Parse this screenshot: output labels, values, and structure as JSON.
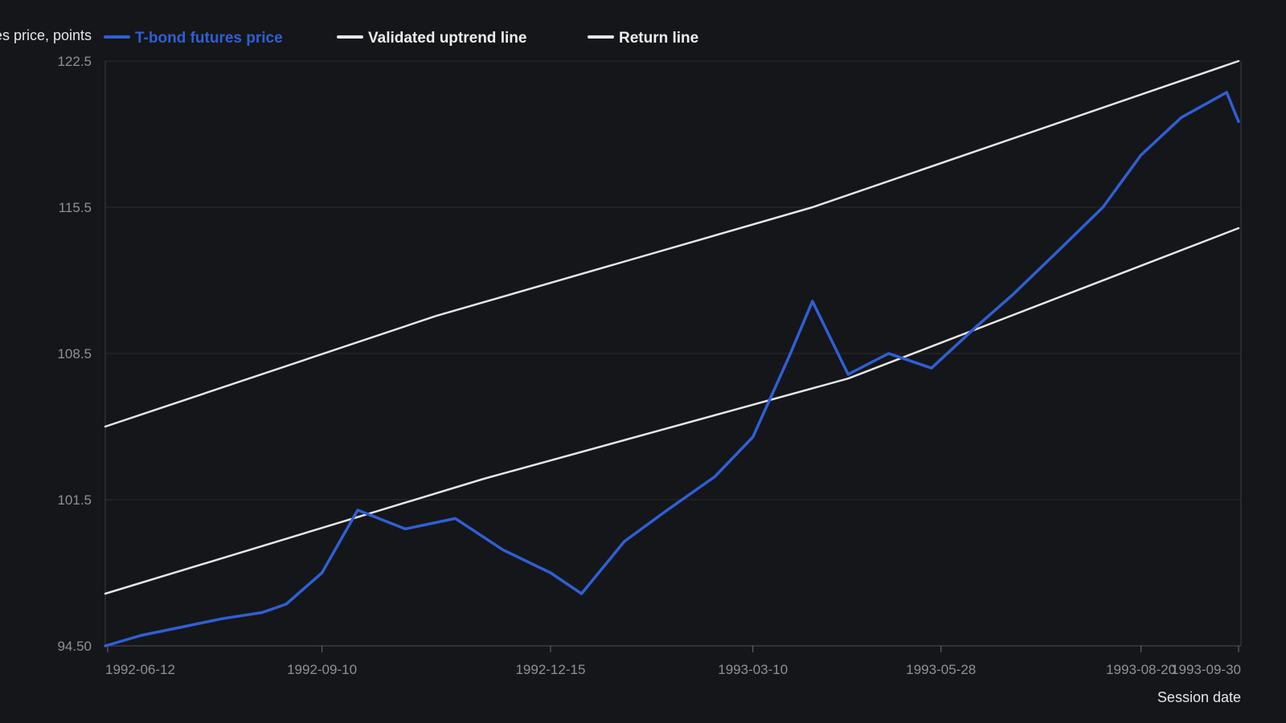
{
  "chart_data": {
    "type": "line",
    "title": "",
    "ylabel": "T-bond futures price, points",
    "xlabel": "Session date",
    "ylim": [
      94.5,
      122.5
    ],
    "xlim": [
      "1992-06-11",
      "1993-10-01"
    ],
    "y_ticks": [
      "94.50",
      "101.5",
      "108.5",
      "115.5",
      "122.5"
    ],
    "x_ticks": [
      "1992-06-12",
      "1992-09-10",
      "1992-12-15",
      "1993-03-10",
      "1993-05-28",
      "1993-08-20",
      "1993-09-30"
    ],
    "grid": true,
    "legend_position": "top-left",
    "series": [
      {
        "name": "T-bond futures price",
        "color": "#2f5fd6",
        "points": [
          [
            "1992-06-11",
            94.5
          ],
          [
            "1992-06-26",
            95.0
          ],
          [
            "1992-07-13",
            95.4
          ],
          [
            "1992-07-30",
            95.8
          ],
          [
            "1992-08-16",
            96.1
          ],
          [
            "1992-08-26",
            96.5
          ],
          [
            "1992-09-10",
            98.0
          ],
          [
            "1992-09-25",
            101.0
          ],
          [
            "1992-10-15",
            100.1
          ],
          [
            "1992-11-05",
            100.6
          ],
          [
            "1992-11-25",
            99.1
          ],
          [
            "1992-12-15",
            98.0
          ],
          [
            "1992-12-28",
            97.0
          ],
          [
            "1993-01-15",
            99.5
          ],
          [
            "1993-02-02",
            101.0
          ],
          [
            "1993-02-22",
            102.6
          ],
          [
            "1993-03-10",
            104.5
          ],
          [
            "1993-03-25",
            108.3
          ],
          [
            "1993-04-04",
            111.0
          ],
          [
            "1993-04-19",
            107.5
          ],
          [
            "1993-05-06",
            108.5
          ],
          [
            "1993-05-24",
            107.8
          ],
          [
            "1993-06-12",
            109.8
          ],
          [
            "1993-06-27",
            111.3
          ],
          [
            "1993-07-17",
            113.5
          ],
          [
            "1993-08-04",
            115.5
          ],
          [
            "1993-08-20",
            118.0
          ],
          [
            "1993-09-06",
            119.8
          ],
          [
            "1993-09-25",
            121.0
          ],
          [
            "1993-09-30",
            119.6
          ]
        ]
      },
      {
        "name": "Validated uptrend line",
        "color": "#e6e6e6",
        "points": [
          [
            "1992-06-11",
            97.0
          ],
          [
            "1992-11-17",
            102.5
          ],
          [
            "1993-04-19",
            107.3
          ],
          [
            "1993-09-30",
            114.5
          ]
        ]
      },
      {
        "name": "Return line",
        "color": "#e6e6e6",
        "points": [
          [
            "1992-06-11",
            105.0
          ],
          [
            "1992-10-28",
            110.3
          ],
          [
            "1993-04-04",
            115.5
          ],
          [
            "1993-09-30",
            122.5
          ]
        ]
      }
    ]
  }
}
